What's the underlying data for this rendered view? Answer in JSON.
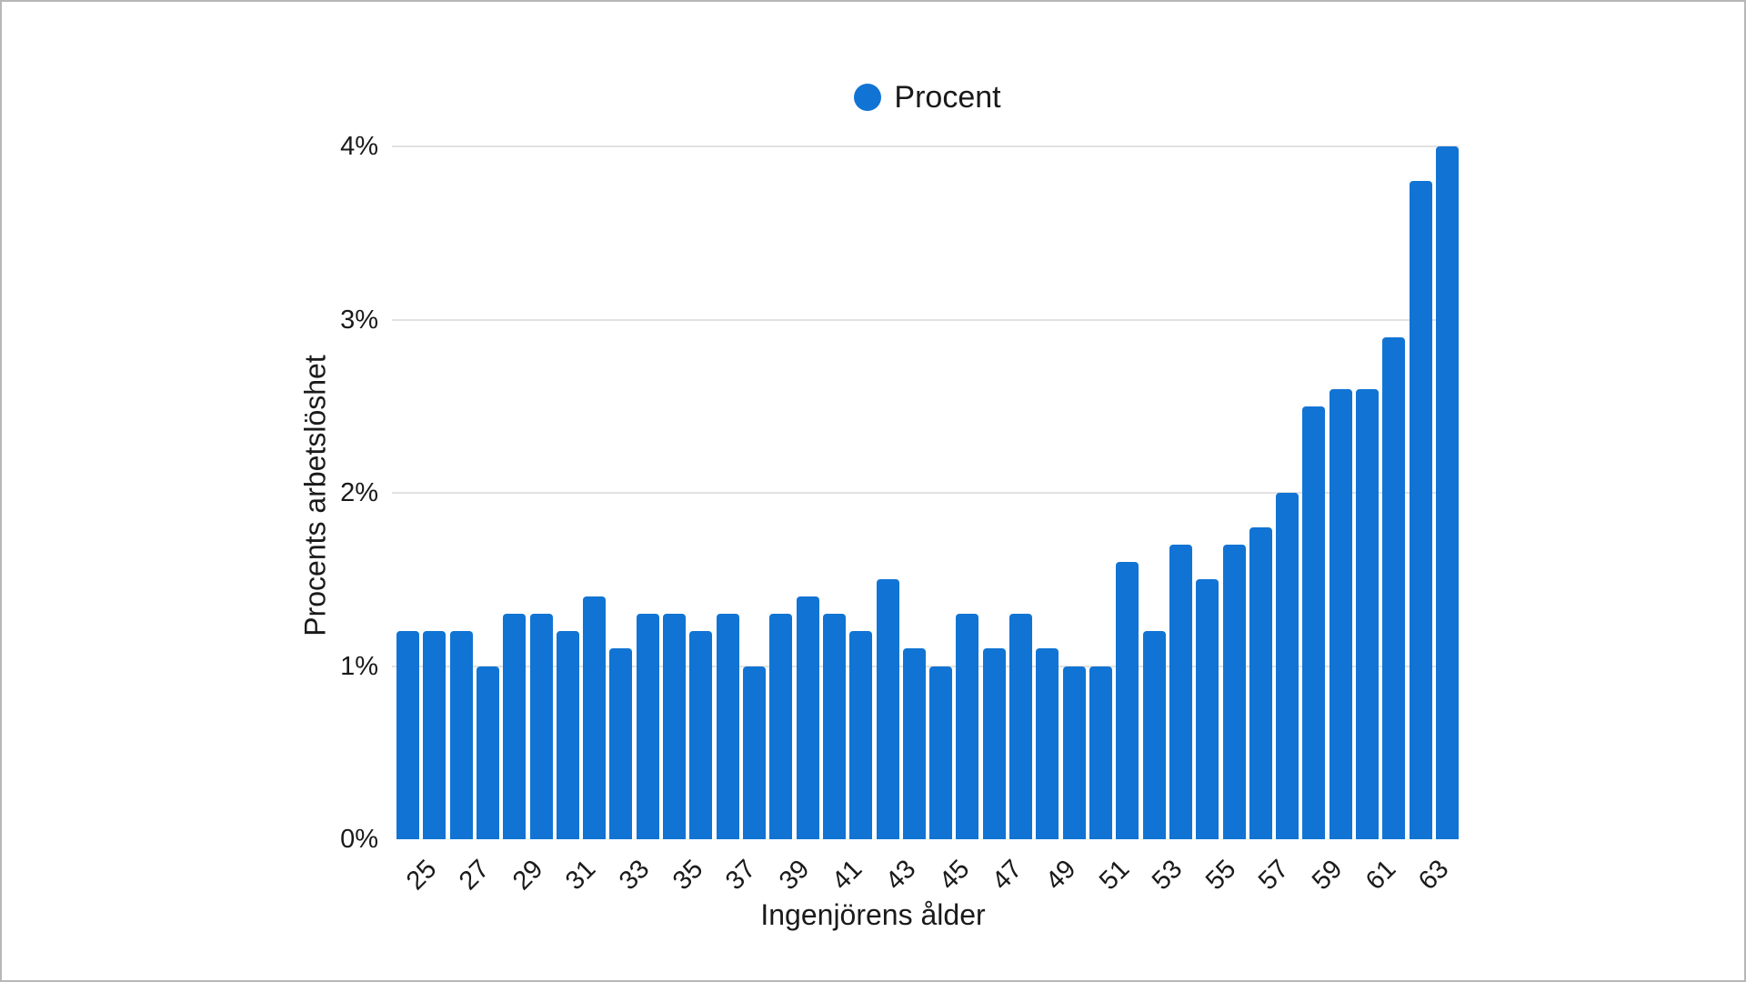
{
  "frame": {
    "background": "#ffffff",
    "border_color": "#b7b7b7"
  },
  "colors": {
    "bar": "#1174d4",
    "gridline": "#e2e2e2",
    "text": "#1a1a1a"
  },
  "legend": {
    "label": "Procent",
    "marker": "blue-circle"
  },
  "chart_data": {
    "type": "bar",
    "title": "",
    "legend_entries": [
      "Procent"
    ],
    "legend_position": "top-center",
    "xlabel": "Ingenjörens ålder",
    "ylabel": "Procents arbetslöshet",
    "grid": true,
    "ylim": [
      0,
      4
    ],
    "y_ticks": [
      {
        "value": 0,
        "label": "0%"
      },
      {
        "value": 1,
        "label": "1%"
      },
      {
        "value": 2,
        "label": "2%"
      },
      {
        "value": 3,
        "label": "3%"
      },
      {
        "value": 4,
        "label": "4%"
      }
    ],
    "x": [
      25,
      26,
      27,
      28,
      29,
      30,
      31,
      32,
      33,
      34,
      35,
      36,
      37,
      38,
      39,
      40,
      41,
      42,
      43,
      44,
      45,
      46,
      47,
      48,
      49,
      50,
      51,
      52,
      53,
      54,
      55,
      56,
      57,
      58,
      59,
      60,
      61,
      62,
      63,
      64
    ],
    "x_tick_labels": [
      "25",
      "27",
      "29",
      "31",
      "33",
      "35",
      "37",
      "39",
      "41",
      "43",
      "45",
      "47",
      "49",
      "51",
      "53",
      "55",
      "57",
      "59",
      "61",
      "63"
    ],
    "series": [
      {
        "name": "Procent",
        "color": "#1174d4",
        "values": [
          1.2,
          1.2,
          1.2,
          1.0,
          1.3,
          1.3,
          1.2,
          1.4,
          1.1,
          1.3,
          1.3,
          1.2,
          1.3,
          1.0,
          1.3,
          1.4,
          1.3,
          1.2,
          1.5,
          1.1,
          1.0,
          1.3,
          1.1,
          1.3,
          1.1,
          1.0,
          1.0,
          1.6,
          1.2,
          1.7,
          1.5,
          1.7,
          1.8,
          2.0,
          2.5,
          2.6,
          2.6,
          2.9,
          3.8,
          4.0
        ]
      }
    ]
  }
}
